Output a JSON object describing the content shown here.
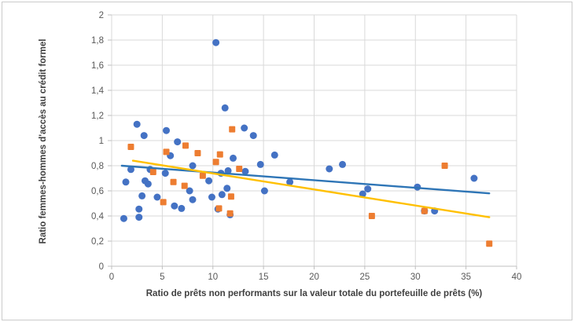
{
  "figure": {
    "background": "#FFFFFF",
    "border_color": "#CBCBCB"
  },
  "chart_data": {
    "type": "scatter",
    "title": "",
    "xlabel": "Ratio de prêts non performants sur la valeur totale du portefeuille de prêts (%)",
    "ylabel": "Ratio femmes-hommes d'accès au crédit formel",
    "xlim": [
      0,
      40
    ],
    "ylim": [
      0,
      2
    ],
    "grid": true,
    "legend": "none",
    "decimal_separator": ",",
    "xticks": [
      0,
      5,
      10,
      15,
      20,
      25,
      30,
      35,
      40
    ],
    "xtick_labels": [
      "0",
      "5",
      "10",
      "15",
      "20",
      "25",
      "30",
      "35",
      "40"
    ],
    "yticks": [
      0,
      0.2,
      0.4,
      0.6,
      0.8,
      1,
      1.2,
      1.4,
      1.6,
      1.8,
      2
    ],
    "ytick_labels": [
      "0",
      "0,2",
      "0,4",
      "0,6",
      "0,8",
      "1",
      "1,2",
      "1,4",
      "1,6",
      "1,8",
      "2"
    ],
    "colors": {
      "gridline": "#D9D9D9",
      "axis_line": "#BFBFBF",
      "tick_label": "#595959",
      "axis_title": "#404040",
      "series_blue": "#4472C4",
      "series_orange": "#ED7D31",
      "trend_blue": "#2E75B6",
      "trend_yellow": "#FFC000"
    },
    "series": [
      {
        "name": "serie-bleue",
        "marker": "circle",
        "color": "#4472C4",
        "points": [
          [
            1.2,
            0.38
          ],
          [
            1.4,
            0.67
          ],
          [
            1.9,
            0.77
          ],
          [
            2.5,
            1.13
          ],
          [
            2.7,
            0.455
          ],
          [
            2.7,
            0.39
          ],
          [
            3.0,
            0.56
          ],
          [
            3.2,
            1.04
          ],
          [
            3.3,
            0.68
          ],
          [
            3.6,
            0.655
          ],
          [
            3.8,
            0.77
          ],
          [
            4.5,
            0.55
          ],
          [
            5.3,
            0.74
          ],
          [
            5.4,
            1.08
          ],
          [
            5.8,
            0.88
          ],
          [
            6.2,
            0.48
          ],
          [
            6.5,
            0.99
          ],
          [
            6.9,
            0.46
          ],
          [
            7.7,
            0.6
          ],
          [
            8.0,
            0.8
          ],
          [
            8.0,
            0.53
          ],
          [
            9.6,
            0.68
          ],
          [
            9.9,
            0.55
          ],
          [
            10.3,
            1.78
          ],
          [
            10.5,
            0.455
          ],
          [
            10.8,
            0.74
          ],
          [
            10.9,
            0.57
          ],
          [
            11.2,
            1.26
          ],
          [
            11.4,
            0.62
          ],
          [
            11.5,
            0.76
          ],
          [
            11.7,
            0.41
          ],
          [
            12.0,
            0.86
          ],
          [
            13.1,
            1.1
          ],
          [
            13.2,
            0.755
          ],
          [
            14.0,
            1.04
          ],
          [
            14.7,
            0.81
          ],
          [
            15.1,
            0.6
          ],
          [
            16.1,
            0.885
          ],
          [
            17.6,
            0.67
          ],
          [
            21.5,
            0.775
          ],
          [
            22.8,
            0.81
          ],
          [
            24.8,
            0.575
          ],
          [
            25.3,
            0.615
          ],
          [
            30.2,
            0.63
          ],
          [
            30.9,
            0.44
          ],
          [
            31.9,
            0.44
          ],
          [
            35.8,
            0.7
          ]
        ]
      },
      {
        "name": "serie-orange",
        "marker": "square",
        "color": "#ED7D31",
        "points": [
          [
            1.9,
            0.95
          ],
          [
            4.1,
            0.75
          ],
          [
            5.1,
            0.51
          ],
          [
            5.4,
            0.91
          ],
          [
            6.1,
            0.67
          ],
          [
            7.2,
            0.64
          ],
          [
            7.3,
            0.96
          ],
          [
            8.5,
            0.9
          ],
          [
            9.0,
            0.72
          ],
          [
            10.3,
            0.83
          ],
          [
            10.6,
            0.46
          ],
          [
            10.7,
            0.89
          ],
          [
            11.7,
            0.42
          ],
          [
            11.8,
            0.555
          ],
          [
            11.9,
            1.09
          ],
          [
            12.6,
            0.775
          ],
          [
            25.7,
            0.4
          ],
          [
            30.9,
            0.44
          ],
          [
            32.9,
            0.8
          ],
          [
            37.3,
            0.18
          ]
        ]
      }
    ],
    "trendlines": [
      {
        "name": "tendance-bleue",
        "color": "#2E75B6",
        "x1": 1.0,
        "y1": 0.8,
        "x2": 37.3,
        "y2": 0.58
      },
      {
        "name": "tendance-jaune",
        "color": "#FFC000",
        "x1": 2.1,
        "y1": 0.84,
        "x2": 37.3,
        "y2": 0.39
      }
    ]
  }
}
